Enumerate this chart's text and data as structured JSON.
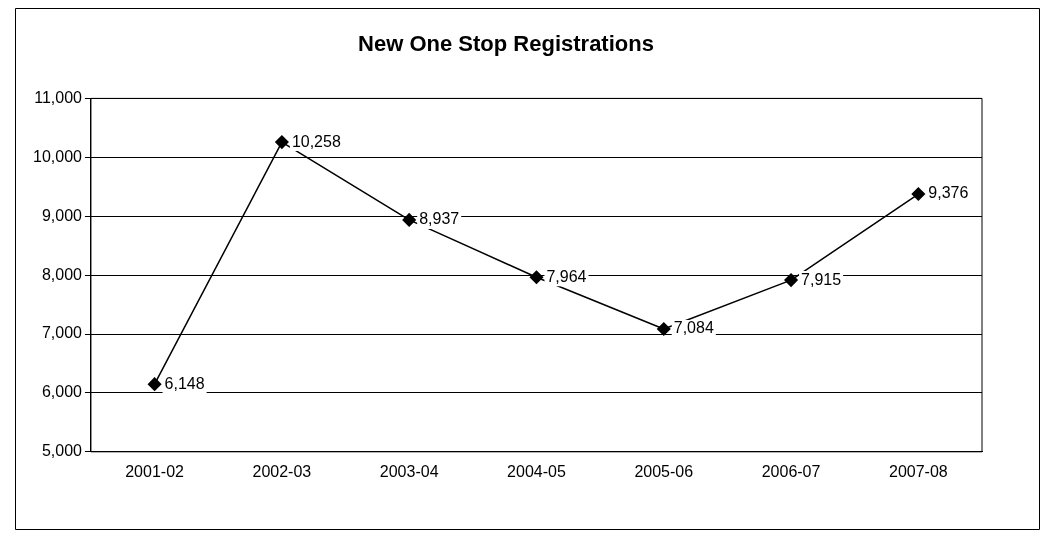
{
  "chart_data": {
    "type": "line",
    "title": "New One Stop Registrations",
    "categories": [
      "2001-02",
      "2002-03",
      "2003-04",
      "2004-05",
      "2005-06",
      "2006-07",
      "2007-08"
    ],
    "series": [
      {
        "color": "#000000",
        "values": [
          6148,
          10258,
          8937,
          7964,
          7084,
          7915,
          9376
        ],
        "value_labels": [
          "6,148",
          "10,258",
          "8,937",
          "7,964",
          "7,084",
          "7,915",
          "9,376"
        ]
      }
    ],
    "ylim": [
      5000,
      11000
    ],
    "yticks": [
      {
        "value": 5000,
        "label": "5,000"
      },
      {
        "value": 6000,
        "label": "6,000"
      },
      {
        "value": 7000,
        "label": "7,000"
      },
      {
        "value": 8000,
        "label": "8,000"
      },
      {
        "value": 9000,
        "label": "9,000"
      },
      {
        "value": 10000,
        "label": "10,000"
      },
      {
        "value": 11000,
        "label": "11,000"
      }
    ],
    "grid": "y",
    "legend": false,
    "marker": "diamond",
    "line_style": "solid"
  }
}
